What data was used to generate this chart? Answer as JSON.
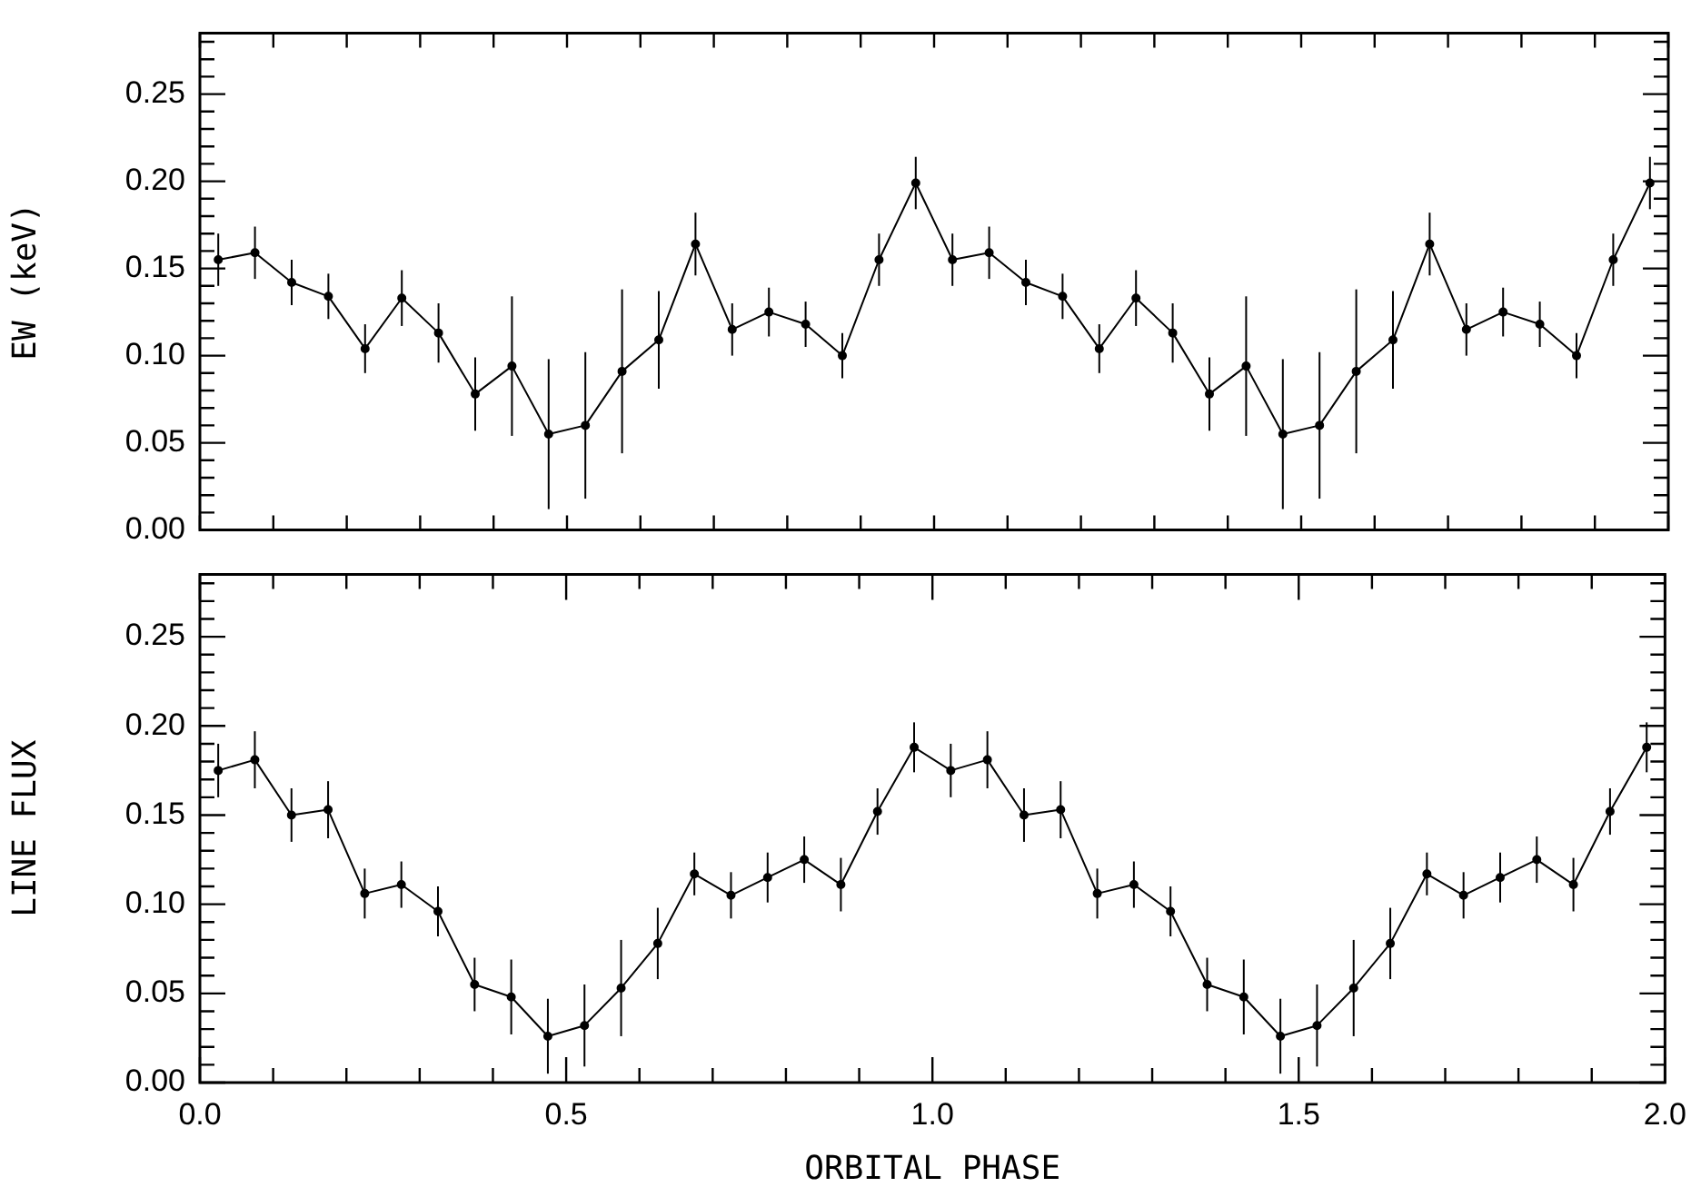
{
  "chart_data": [
    {
      "type": "line",
      "ylabel": "EW (keV)",
      "tick_labels": "y",
      "grid": false,
      "legend": false,
      "marker": "circle",
      "line_style": "solid",
      "x": [
        0.025,
        0.075,
        0.125,
        0.175,
        0.225,
        0.275,
        0.325,
        0.375,
        0.425,
        0.475,
        0.525,
        0.575,
        0.625,
        0.675,
        0.725,
        0.775,
        0.825,
        0.875,
        0.925,
        0.975,
        1.025,
        1.075,
        1.125,
        1.175,
        1.225,
        1.275,
        1.325,
        1.375,
        1.425,
        1.475,
        1.525,
        1.575,
        1.625,
        1.675,
        1.725,
        1.775,
        1.825,
        1.875,
        1.925,
        1.975
      ],
      "series": [
        {
          "color": "#000000",
          "values": [
            0.155,
            0.159,
            0.142,
            0.134,
            0.104,
            0.133,
            0.113,
            0.078,
            0.094,
            0.055,
            0.06,
            0.091,
            0.109,
            0.164,
            0.115,
            0.125,
            0.118,
            0.1,
            0.155,
            0.199,
            0.155,
            0.159,
            0.142,
            0.134,
            0.104,
            0.133,
            0.113,
            0.078,
            0.094,
            0.055,
            0.06,
            0.091,
            0.109,
            0.164,
            0.115,
            0.125,
            0.118,
            0.1,
            0.155,
            0.199
          ],
          "errors": [
            0.015,
            0.015,
            0.013,
            0.013,
            0.014,
            0.016,
            0.017,
            0.021,
            0.04,
            0.043,
            0.042,
            0.047,
            0.028,
            0.018,
            0.015,
            0.014,
            0.013,
            0.013,
            0.015,
            0.015,
            0.015,
            0.015,
            0.013,
            0.013,
            0.014,
            0.016,
            0.017,
            0.021,
            0.04,
            0.043,
            0.042,
            0.047,
            0.028,
            0.018,
            0.015,
            0.014,
            0.013,
            0.013,
            0.015,
            0.015
          ]
        }
      ],
      "xlim": [
        0,
        2
      ],
      "xticks": [
        {
          "value": 0,
          "label": null
        },
        {
          "value": 0.1,
          "label": null
        },
        {
          "value": 0.2,
          "label": null
        },
        {
          "value": 0.3,
          "label": null
        },
        {
          "value": 0.4,
          "label": null
        },
        {
          "value": 0.5,
          "label": null
        },
        {
          "value": 0.6,
          "label": null
        },
        {
          "value": 0.7,
          "label": null
        },
        {
          "value": 0.8,
          "label": null
        },
        {
          "value": 0.9,
          "label": null
        },
        {
          "value": 1,
          "label": null
        },
        {
          "value": 1.1,
          "label": null
        },
        {
          "value": 1.2,
          "label": null
        },
        {
          "value": 1.3,
          "label": null
        },
        {
          "value": 1.4,
          "label": null
        },
        {
          "value": 1.5,
          "label": null
        },
        {
          "value": 1.6,
          "label": null
        },
        {
          "value": 1.7,
          "label": null
        },
        {
          "value": 1.8,
          "label": null
        },
        {
          "value": 1.9,
          "label": null
        },
        {
          "value": 2,
          "label": null
        }
      ],
      "ylim": [
        0,
        0.285
      ],
      "yticks": [
        {
          "value": 0,
          "label": "0.00"
        },
        {
          "value": 0.01,
          "label": null
        },
        {
          "value": 0.02,
          "label": null
        },
        {
          "value": 0.03,
          "label": null
        },
        {
          "value": 0.04,
          "label": null
        },
        {
          "value": 0.05,
          "label": "0.05"
        },
        {
          "value": 0.06,
          "label": null
        },
        {
          "value": 0.07,
          "label": null
        },
        {
          "value": 0.08,
          "label": null
        },
        {
          "value": 0.09,
          "label": null
        },
        {
          "value": 0.1,
          "label": "0.10"
        },
        {
          "value": 0.11,
          "label": null
        },
        {
          "value": 0.12,
          "label": null
        },
        {
          "value": 0.13,
          "label": null
        },
        {
          "value": 0.14,
          "label": null
        },
        {
          "value": 0.15,
          "label": "0.15"
        },
        {
          "value": 0.16,
          "label": null
        },
        {
          "value": 0.17,
          "label": null
        },
        {
          "value": 0.18,
          "label": null
        },
        {
          "value": 0.19,
          "label": null
        },
        {
          "value": 0.2,
          "label": "0.20"
        },
        {
          "value": 0.21,
          "label": null
        },
        {
          "value": 0.22,
          "label": null
        },
        {
          "value": 0.23,
          "label": null
        },
        {
          "value": 0.24,
          "label": null
        },
        {
          "value": 0.25,
          "label": "0.25"
        },
        {
          "value": 0.26,
          "label": null
        },
        {
          "value": 0.27,
          "label": null
        },
        {
          "value": 0.28,
          "label": null
        }
      ]
    },
    {
      "type": "line",
      "ylabel": "LINE FLUX",
      "xlabel": "ORBITAL PHASE",
      "grid": false,
      "legend": false,
      "marker": "circle",
      "line_style": "solid",
      "x": [
        0.025,
        0.075,
        0.125,
        0.175,
        0.225,
        0.275,
        0.325,
        0.375,
        0.425,
        0.475,
        0.525,
        0.575,
        0.625,
        0.675,
        0.725,
        0.775,
        0.825,
        0.875,
        0.925,
        0.975,
        1.025,
        1.075,
        1.125,
        1.175,
        1.225,
        1.275,
        1.325,
        1.375,
        1.425,
        1.475,
        1.525,
        1.575,
        1.625,
        1.675,
        1.725,
        1.775,
        1.825,
        1.875,
        1.925,
        1.975
      ],
      "series": [
        {
          "color": "#000000",
          "values": [
            0.175,
            0.181,
            0.15,
            0.153,
            0.106,
            0.111,
            0.096,
            0.055,
            0.048,
            0.026,
            0.032,
            0.053,
            0.078,
            0.117,
            0.105,
            0.115,
            0.125,
            0.111,
            0.152,
            0.188,
            0.175,
            0.181,
            0.15,
            0.153,
            0.106,
            0.111,
            0.096,
            0.055,
            0.048,
            0.026,
            0.032,
            0.053,
            0.078,
            0.117,
            0.105,
            0.115,
            0.125,
            0.111,
            0.152,
            0.188
          ],
          "errors": [
            0.015,
            0.016,
            0.015,
            0.016,
            0.014,
            0.013,
            0.014,
            0.015,
            0.021,
            0.021,
            0.023,
            0.027,
            0.02,
            0.012,
            0.013,
            0.014,
            0.013,
            0.015,
            0.013,
            0.014,
            0.015,
            0.016,
            0.015,
            0.016,
            0.014,
            0.013,
            0.014,
            0.015,
            0.021,
            0.021,
            0.023,
            0.027,
            0.02,
            0.012,
            0.013,
            0.014,
            0.013,
            0.015,
            0.013,
            0.014
          ]
        }
      ],
      "xlim": [
        0,
        2
      ],
      "xticks": [
        {
          "value": 0,
          "label": "0.0"
        },
        {
          "value": 0.1,
          "label": null
        },
        {
          "value": 0.2,
          "label": null
        },
        {
          "value": 0.3,
          "label": null
        },
        {
          "value": 0.4,
          "label": null
        },
        {
          "value": 0.5,
          "label": "0.5"
        },
        {
          "value": 0.6,
          "label": null
        },
        {
          "value": 0.7,
          "label": null
        },
        {
          "value": 0.8,
          "label": null
        },
        {
          "value": 0.9,
          "label": null
        },
        {
          "value": 1,
          "label": "1.0"
        },
        {
          "value": 1.1,
          "label": null
        },
        {
          "value": 1.2,
          "label": null
        },
        {
          "value": 1.3,
          "label": null
        },
        {
          "value": 1.4,
          "label": null
        },
        {
          "value": 1.5,
          "label": "1.5"
        },
        {
          "value": 1.6,
          "label": null
        },
        {
          "value": 1.7,
          "label": null
        },
        {
          "value": 1.8,
          "label": null
        },
        {
          "value": 1.9,
          "label": null
        },
        {
          "value": 2,
          "label": "2.0"
        }
      ],
      "ylim": [
        0,
        0.285
      ],
      "yticks": [
        {
          "value": 0,
          "label": "0.00"
        },
        {
          "value": 0.01,
          "label": null
        },
        {
          "value": 0.02,
          "label": null
        },
        {
          "value": 0.03,
          "label": null
        },
        {
          "value": 0.04,
          "label": null
        },
        {
          "value": 0.05,
          "label": "0.05"
        },
        {
          "value": 0.06,
          "label": null
        },
        {
          "value": 0.07,
          "label": null
        },
        {
          "value": 0.08,
          "label": null
        },
        {
          "value": 0.09,
          "label": null
        },
        {
          "value": 0.1,
          "label": "0.10"
        },
        {
          "value": 0.11,
          "label": null
        },
        {
          "value": 0.12,
          "label": null
        },
        {
          "value": 0.13,
          "label": null
        },
        {
          "value": 0.14,
          "label": null
        },
        {
          "value": 0.15,
          "label": "0.15"
        },
        {
          "value": 0.16,
          "label": null
        },
        {
          "value": 0.17,
          "label": null
        },
        {
          "value": 0.18,
          "label": null
        },
        {
          "value": 0.19,
          "label": null
        },
        {
          "value": 0.2,
          "label": "0.20"
        },
        {
          "value": 0.21,
          "label": null
        },
        {
          "value": 0.22,
          "label": null
        },
        {
          "value": 0.23,
          "label": null
        },
        {
          "value": 0.24,
          "label": null
        },
        {
          "value": 0.25,
          "label": "0.25"
        },
        {
          "value": 0.26,
          "label": null
        },
        {
          "value": 0.27,
          "label": null
        },
        {
          "value": 0.28,
          "label": null
        }
      ]
    }
  ]
}
